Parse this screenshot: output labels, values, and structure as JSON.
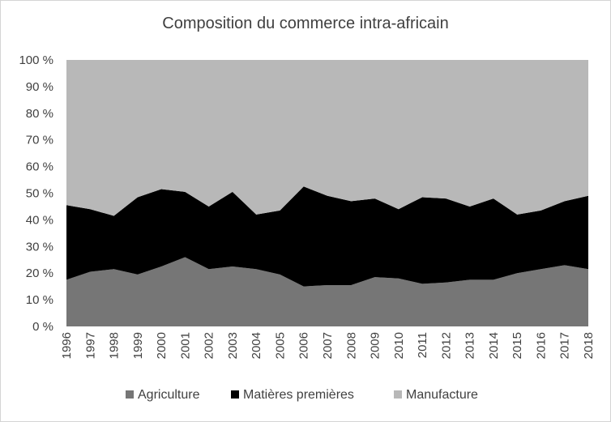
{
  "chart_data": {
    "type": "area",
    "stacked": true,
    "percent": true,
    "title": "Composition du commerce intra-africain",
    "xlabel": "",
    "ylabel": "",
    "ylim": [
      0,
      100
    ],
    "y_ticks": [
      "0 %",
      "10 %",
      "20 %",
      "30 %",
      "40 %",
      "50 %",
      "60 %",
      "70 %",
      "80 %",
      "90 %",
      "100 %"
    ],
    "legend_position": "bottom",
    "categories": [
      "1996",
      "1997",
      "1998",
      "1999",
      "2000",
      "2001",
      "2002",
      "2003",
      "2004",
      "2005",
      "2006",
      "2007",
      "2008",
      "2009",
      "2010",
      "2011",
      "2012",
      "2013",
      "2014",
      "2015",
      "2016",
      "2017",
      "2018"
    ],
    "series": [
      {
        "name": "Agriculture",
        "color": "#767676",
        "values": [
          17.5,
          20.5,
          21.5,
          19.5,
          22.5,
          26.0,
          21.5,
          22.5,
          21.5,
          19.5,
          15.0,
          15.5,
          15.5,
          18.5,
          18.0,
          16.0,
          16.5,
          17.5,
          17.5,
          20.0,
          21.5,
          23.0,
          21.5
        ]
      },
      {
        "name": "Matières premières",
        "color": "#000000",
        "values": [
          28.0,
          23.5,
          20.0,
          29.0,
          29.0,
          24.5,
          23.5,
          28.0,
          20.5,
          24.0,
          37.5,
          33.5,
          31.5,
          29.5,
          26.0,
          32.5,
          31.5,
          27.5,
          30.5,
          22.0,
          22.0,
          24.0,
          27.5
        ]
      },
      {
        "name": "Manufacture",
        "color": "#b8b8b8",
        "values": [
          54.5,
          56.0,
          58.5,
          51.5,
          48.5,
          49.5,
          55.0,
          49.5,
          58.0,
          56.5,
          47.5,
          51.0,
          53.0,
          52.0,
          56.0,
          51.5,
          52.0,
          55.0,
          52.0,
          58.0,
          56.5,
          53.0,
          51.0
        ]
      }
    ]
  }
}
